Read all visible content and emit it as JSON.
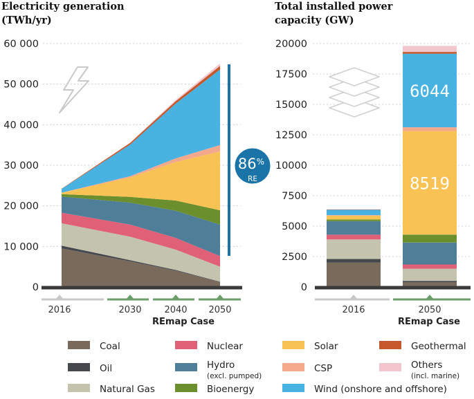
{
  "colors": {
    "coal": "#7a6a5c",
    "oil": "#45484d",
    "natural_gas": "#c4c3ad",
    "nuclear": "#e06078",
    "hydro": "#4f7e98",
    "bioenergy": "#6c8f2e",
    "solar": "#f8c254",
    "csp": "#f5a98c",
    "wind": "#48b2e0",
    "geothermal": "#c4582c",
    "others": "#f2c6cc",
    "re_accent": "#1a74a7",
    "axis": "#3a3a3a",
    "timeline_gray": "#c8c8c8",
    "timeline_green": "#6a9e6a"
  },
  "chart_data": [
    {
      "type": "area",
      "title": "Electricity generation (TWh/yr)",
      "title_lines": [
        "Electricity generation",
        "(TWh/yr)"
      ],
      "x": [
        2016,
        2030,
        2040,
        2050
      ],
      "x_tick_labels": [
        "2016",
        "2030",
        "2040",
        "2050"
      ],
      "xlabel": "REmap Case",
      "ylim": [
        0,
        60000
      ],
      "y_ticks": [
        0,
        10000,
        20000,
        30000,
        40000,
        50000,
        60000
      ],
      "y_tick_labels": [
        "0",
        "10 000",
        "20 000",
        "30 000",
        "40 000",
        "50 000",
        "60 000"
      ],
      "series": [
        {
          "name": "Coal",
          "key": "coal",
          "values": [
            9500,
            6300,
            4000,
            1200
          ]
        },
        {
          "name": "Oil",
          "key": "oil",
          "values": [
            700,
            300,
            200,
            100
          ]
        },
        {
          "name": "Natural Gas",
          "key": "natural_gas",
          "values": [
            5500,
            5800,
            5000,
            3700
          ]
        },
        {
          "name": "Nuclear",
          "key": "nuclear",
          "values": [
            2600,
            3000,
            2900,
            2600
          ]
        },
        {
          "name": "Hydro (excl. pumped)",
          "key": "hydro",
          "values": [
            4000,
            5400,
            6700,
            7800
          ]
        },
        {
          "name": "Bioenergy",
          "key": "bioenergy",
          "values": [
            600,
            1400,
            2500,
            3500
          ]
        },
        {
          "name": "Solar",
          "key": "solar",
          "values": [
            300,
            4800,
            9500,
            14500
          ]
        },
        {
          "name": "CSP",
          "key": "csp",
          "values": [
            50,
            300,
            900,
            1600
          ]
        },
        {
          "name": "Wind (onshore and offshore)",
          "key": "wind",
          "values": [
            900,
            7800,
            13500,
            18600
          ]
        },
        {
          "name": "Geothermal",
          "key": "geothermal",
          "values": [
            80,
            400,
            600,
            900
          ]
        },
        {
          "name": "Others (incl. marine)",
          "key": "others",
          "values": [
            0,
            100,
            300,
            600
          ]
        }
      ],
      "annotation": {
        "value": "86",
        "unit": "%",
        "label": "RE"
      }
    },
    {
      "type": "bar",
      "stacked": true,
      "title": "Total installed power capacity (GW)",
      "title_lines": [
        "Total installed power",
        "capacity (GW)"
      ],
      "categories": [
        "2016",
        "2050"
      ],
      "xlabel": "REmap Case",
      "ylim": [
        0,
        20000
      ],
      "y_ticks": [
        0,
        2500,
        5000,
        7500,
        10000,
        12500,
        15000,
        17500,
        20000
      ],
      "y_tick_labels": [
        "0",
        "2500",
        "5000",
        "7500",
        "10000",
        "12500",
        "15000",
        "17500",
        "20000"
      ],
      "series": [
        {
          "name": "Coal",
          "key": "coal",
          "values": [
            2000,
            400
          ]
        },
        {
          "name": "Oil",
          "key": "oil",
          "values": [
            300,
            100
          ]
        },
        {
          "name": "Natural Gas",
          "key": "natural_gas",
          "values": [
            1600,
            1000
          ]
        },
        {
          "name": "Nuclear",
          "key": "nuclear",
          "values": [
            400,
            350
          ]
        },
        {
          "name": "Hydro (excl. pumped)",
          "key": "hydro",
          "values": [
            1100,
            1800
          ]
        },
        {
          "name": "Bioenergy",
          "key": "bioenergy",
          "values": [
            150,
            650
          ]
        },
        {
          "name": "Solar",
          "key": "solar",
          "values": [
            300,
            8519
          ]
        },
        {
          "name": "CSP",
          "key": "csp",
          "values": [
            50,
            300
          ]
        },
        {
          "name": "Wind (onshore and offshore)",
          "key": "wind",
          "values": [
            450,
            6044
          ]
        },
        {
          "name": "Geothermal",
          "key": "geothermal",
          "values": [
            20,
            150
          ]
        },
        {
          "name": "Others (incl. marine)",
          "key": "others",
          "values": [
            30,
            500
          ]
        }
      ],
      "bar_labels": [
        {
          "series": "Solar",
          "category": "2050",
          "text": "8519"
        },
        {
          "series": "Wind (onshore and offshore)",
          "category": "2050",
          "text": "6044"
        }
      ]
    }
  ],
  "legend": [
    {
      "key": "coal",
      "label": "Coal"
    },
    {
      "key": "nuclear",
      "label": "Nuclear"
    },
    {
      "key": "solar",
      "label": "Solar"
    },
    {
      "key": "geothermal",
      "label": "Geothermal"
    },
    {
      "key": "oil",
      "label": "Oil"
    },
    {
      "key": "hydro",
      "label": "Hydro",
      "sub": "(excl. pumped)"
    },
    {
      "key": "csp",
      "label": "CSP"
    },
    {
      "key": "others",
      "label": "Others",
      "sub": "(incl. marine)"
    },
    {
      "key": "natural_gas",
      "label": "Natural Gas"
    },
    {
      "key": "bioenergy",
      "label": "Bioenergy"
    },
    {
      "key": "wind",
      "label": "Wind (onshore and offshore)"
    }
  ]
}
